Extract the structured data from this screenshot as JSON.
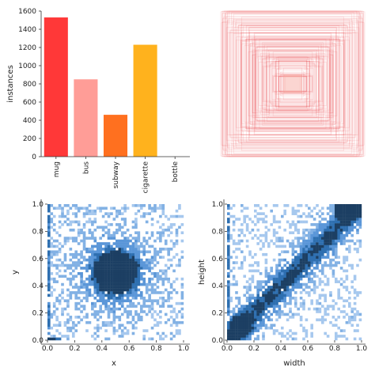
{
  "chart_data": [
    {
      "type": "bar",
      "categories": [
        "mug",
        "bus",
        "subway",
        "cigarette",
        "bottle"
      ],
      "values": [
        1530,
        850,
        460,
        1230,
        0
      ],
      "colors": [
        "#ff3838",
        "#ff9d97",
        "#ff701f",
        "#ffb21d",
        "#cfd231"
      ],
      "xlabel": "",
      "ylabel": "instances",
      "ylim": [
        0,
        1600
      ],
      "yticks": [
        "0",
        "200",
        "400",
        "600",
        "800",
        "1000",
        "1200",
        "1400",
        "1600"
      ],
      "grid": false
    },
    {
      "type": "other",
      "description_color": "#e8383d",
      "centered_boxes": [
        [
          0.97,
          0.97
        ],
        [
          0.95,
          0.92
        ],
        [
          0.93,
          0.95
        ],
        [
          0.9,
          0.88
        ],
        [
          0.88,
          0.9
        ],
        [
          0.85,
          0.82
        ],
        [
          0.82,
          0.86
        ],
        [
          0.8,
          0.78
        ],
        [
          0.75,
          0.8
        ],
        [
          0.72,
          0.7
        ],
        [
          0.7,
          0.74
        ],
        [
          0.66,
          0.64
        ],
        [
          0.62,
          0.66
        ],
        [
          0.58,
          0.56
        ],
        [
          0.55,
          0.6
        ],
        [
          0.5,
          0.5
        ],
        [
          0.48,
          0.52
        ],
        [
          0.44,
          0.42
        ],
        [
          0.42,
          0.46
        ],
        [
          0.38,
          0.36
        ],
        [
          0.35,
          0.38
        ],
        [
          0.3,
          0.28
        ],
        [
          0.28,
          0.3
        ],
        [
          0.25,
          0.24
        ],
        [
          0.22,
          0.2
        ],
        [
          0.2,
          0.22
        ],
        [
          0.17,
          0.16
        ],
        [
          0.15,
          0.14
        ],
        [
          0.12,
          0.12
        ],
        [
          0.1,
          0.1
        ],
        [
          0.98,
          0.84
        ],
        [
          0.84,
          0.98
        ],
        [
          0.9,
          0.7
        ],
        [
          0.7,
          0.92
        ],
        [
          0.6,
          0.78
        ],
        [
          0.78,
          0.6
        ],
        [
          0.4,
          0.55
        ],
        [
          0.55,
          0.4
        ],
        [
          0.99,
          0.99
        ],
        [
          0.92,
          0.99
        ]
      ]
    },
    {
      "type": "heatmap",
      "xlabel": "x",
      "ylabel": "y",
      "xlim": [
        0,
        1
      ],
      "ylim": [
        0,
        1
      ],
      "xticks": [
        "0.0",
        "0.2",
        "0.4",
        "0.6",
        "0.8",
        "1.0"
      ],
      "yticks": [
        "0.0",
        "0.2",
        "0.4",
        "0.6",
        "0.8",
        "1.0"
      ],
      "color": "#1f77b4",
      "density_peak": [
        0.5,
        0.5
      ]
    },
    {
      "type": "heatmap",
      "xlabel": "width",
      "ylabel": "height",
      "xlim": [
        0,
        1
      ],
      "ylim": [
        0,
        1
      ],
      "xticks": [
        "0.0",
        "0.2",
        "0.4",
        "0.6",
        "0.8",
        "1.0"
      ],
      "yticks": [
        "0.0",
        "0.2",
        "0.4",
        "0.6",
        "0.8",
        "1.0"
      ],
      "color": "#1f77b4",
      "density_peak": [
        0.1,
        0.1
      ]
    }
  ]
}
